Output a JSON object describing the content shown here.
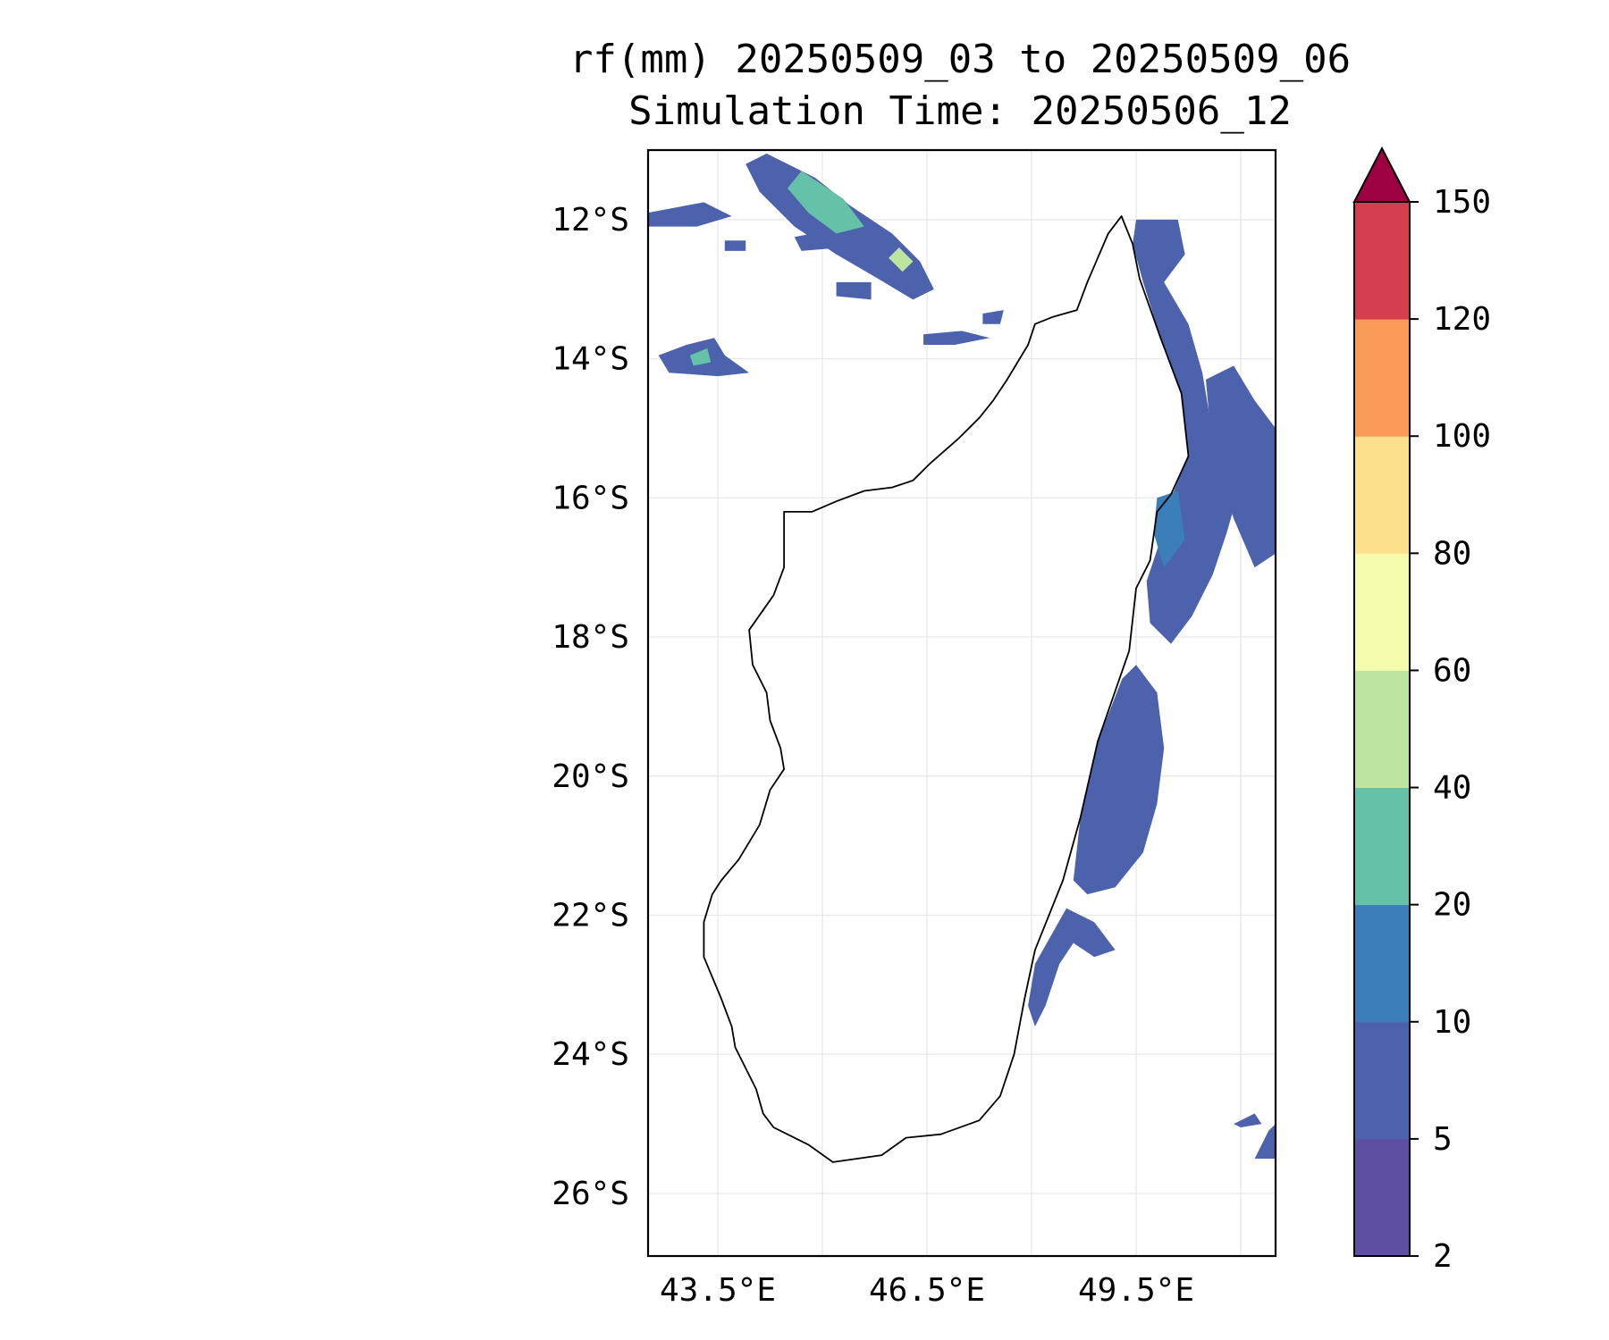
{
  "title": {
    "line1": "rf(mm) 20250509_03 to 20250509_06",
    "line2": "Simulation Time: 20250506_12"
  },
  "map": {
    "lon_range": [
      42.5,
      51.5
    ],
    "lat_range": [
      -26.9,
      -11.0
    ],
    "lat_ticks": [
      {
        "value": -12,
        "label": "12°S"
      },
      {
        "value": -14,
        "label": "14°S"
      },
      {
        "value": -16,
        "label": "16°S"
      },
      {
        "value": -18,
        "label": "18°S"
      },
      {
        "value": -20,
        "label": "20°S"
      },
      {
        "value": -22,
        "label": "22°S"
      },
      {
        "value": -24,
        "label": "24°S"
      },
      {
        "value": -26,
        "label": "26°S"
      }
    ],
    "lon_ticks": [
      {
        "value": 43.5,
        "label": "43.5°E"
      },
      {
        "value": 46.5,
        "label": "46.5°E"
      },
      {
        "value": 49.5,
        "label": "49.5°E"
      }
    ],
    "lon_grid": [
      43.5,
      45.0,
      46.5,
      48.0,
      49.5,
      51.0
    ],
    "coast_color": "#000000",
    "coastline": [
      [
        49.29,
        -11.95
      ],
      [
        49.45,
        -12.35
      ],
      [
        49.55,
        -12.85
      ],
      [
        49.85,
        -13.7
      ],
      [
        50.15,
        -14.5
      ],
      [
        50.25,
        -15.4
      ],
      [
        50.0,
        -15.95
      ],
      [
        49.8,
        -16.2
      ],
      [
        49.7,
        -16.9
      ],
      [
        49.5,
        -17.3
      ],
      [
        49.4,
        -18.2
      ],
      [
        48.95,
        -19.5
      ],
      [
        48.7,
        -20.6
      ],
      [
        48.45,
        -21.5
      ],
      [
        48.05,
        -22.5
      ],
      [
        47.9,
        -23.2
      ],
      [
        47.75,
        -24.0
      ],
      [
        47.55,
        -24.6
      ],
      [
        47.25,
        -24.95
      ],
      [
        46.7,
        -25.15
      ],
      [
        46.2,
        -25.2
      ],
      [
        45.85,
        -25.45
      ],
      [
        45.15,
        -25.55
      ],
      [
        44.8,
        -25.3
      ],
      [
        44.3,
        -25.05
      ],
      [
        44.15,
        -24.85
      ],
      [
        44.05,
        -24.5
      ],
      [
        43.75,
        -23.9
      ],
      [
        43.7,
        -23.6
      ],
      [
        43.55,
        -23.2
      ],
      [
        43.3,
        -22.6
      ],
      [
        43.3,
        -22.1
      ],
      [
        43.42,
        -21.7
      ],
      [
        43.55,
        -21.5
      ],
      [
        43.8,
        -21.2
      ],
      [
        44.1,
        -20.7
      ],
      [
        44.25,
        -20.2
      ],
      [
        44.45,
        -19.9
      ],
      [
        44.4,
        -19.6
      ],
      [
        44.25,
        -19.2
      ],
      [
        44.2,
        -18.8
      ],
      [
        44.0,
        -18.4
      ],
      [
        43.95,
        -17.9
      ],
      [
        44.3,
        -17.4
      ],
      [
        44.45,
        -17.0
      ],
      [
        44.45,
        -16.2
      ],
      [
        44.85,
        -16.2
      ],
      [
        45.2,
        -16.05
      ],
      [
        45.6,
        -15.9
      ],
      [
        46.0,
        -15.85
      ],
      [
        46.3,
        -15.75
      ],
      [
        46.55,
        -15.5
      ],
      [
        46.95,
        -15.15
      ],
      [
        47.25,
        -14.85
      ],
      [
        47.45,
        -14.6
      ],
      [
        47.65,
        -14.3
      ],
      [
        47.95,
        -13.8
      ],
      [
        48.05,
        -13.5
      ],
      [
        48.3,
        -13.4
      ],
      [
        48.65,
        -13.3
      ],
      [
        48.8,
        -12.9
      ],
      [
        48.95,
        -12.55
      ],
      [
        49.1,
        -12.2
      ],
      [
        49.29,
        -11.95
      ]
    ]
  },
  "rain_areas": [
    {
      "points": [
        [
          44.2,
          -11.05
        ],
        [
          44.9,
          -11.4
        ],
        [
          45.4,
          -11.8
        ],
        [
          46.0,
          -12.2
        ],
        [
          46.4,
          -12.6
        ],
        [
          46.6,
          -13.0
        ],
        [
          46.3,
          -13.15
        ],
        [
          45.8,
          -12.85
        ],
        [
          45.2,
          -12.5
        ],
        [
          44.6,
          -12.1
        ],
        [
          44.1,
          -11.6
        ],
        [
          43.9,
          -11.2
        ]
      ],
      "level": 1
    },
    {
      "points": [
        [
          44.7,
          -11.3
        ],
        [
          45.3,
          -11.7
        ],
        [
          45.6,
          -12.1
        ],
        [
          45.2,
          -12.2
        ],
        [
          44.8,
          -11.9
        ],
        [
          44.5,
          -11.55
        ]
      ],
      "level": 3
    },
    {
      "points": [
        [
          46.1,
          -12.4
        ],
        [
          46.3,
          -12.6
        ],
        [
          46.15,
          -12.75
        ],
        [
          45.95,
          -12.55
        ]
      ],
      "level": 4
    },
    {
      "points": [
        [
          42.5,
          -11.9
        ],
        [
          43.3,
          -11.75
        ],
        [
          43.7,
          -11.95
        ],
        [
          43.2,
          -12.1
        ],
        [
          42.5,
          -12.1
        ]
      ],
      "level": 1
    },
    {
      "points": [
        [
          44.6,
          -12.25
        ],
        [
          45.1,
          -12.15
        ],
        [
          45.3,
          -12.4
        ],
        [
          44.7,
          -12.45
        ]
      ],
      "level": 1
    },
    {
      "points": [
        [
          43.6,
          -12.3
        ],
        [
          43.9,
          -12.3
        ],
        [
          43.9,
          -12.45
        ],
        [
          43.6,
          -12.45
        ]
      ],
      "level": 1
    },
    {
      "points": [
        [
          45.2,
          -12.9
        ],
        [
          45.7,
          -12.9
        ],
        [
          45.7,
          -13.15
        ],
        [
          45.2,
          -13.1
        ]
      ],
      "level": 1
    },
    {
      "points": [
        [
          42.65,
          -13.95
        ],
        [
          43.05,
          -13.8
        ],
        [
          43.45,
          -13.7
        ],
        [
          43.6,
          -13.95
        ],
        [
          43.95,
          -14.2
        ],
        [
          43.5,
          -14.25
        ],
        [
          42.8,
          -14.2
        ]
      ],
      "level": 1
    },
    {
      "points": [
        [
          43.1,
          -13.95
        ],
        [
          43.35,
          -13.85
        ],
        [
          43.4,
          -14.05
        ],
        [
          43.15,
          -14.1
        ]
      ],
      "level": 3
    },
    {
      "points": [
        [
          46.45,
          -13.65
        ],
        [
          47.0,
          -13.6
        ],
        [
          47.4,
          -13.7
        ],
        [
          46.9,
          -13.8
        ],
        [
          46.45,
          -13.8
        ]
      ],
      "level": 1
    },
    {
      "points": [
        [
          47.3,
          -13.35
        ],
        [
          47.6,
          -13.3
        ],
        [
          47.55,
          -13.5
        ],
        [
          47.3,
          -13.5
        ]
      ],
      "level": 1
    },
    {
      "points": [
        [
          49.5,
          -12.0
        ],
        [
          50.1,
          -12.0
        ],
        [
          50.2,
          -12.5
        ],
        [
          49.9,
          -12.9
        ],
        [
          50.25,
          -13.5
        ],
        [
          50.45,
          -14.2
        ],
        [
          50.55,
          -14.8
        ],
        [
          50.95,
          -15.1
        ],
        [
          51.0,
          -15.8
        ],
        [
          50.8,
          -16.5
        ],
        [
          50.6,
          -17.1
        ],
        [
          50.3,
          -17.7
        ],
        [
          50.0,
          -18.1
        ],
        [
          49.7,
          -17.8
        ],
        [
          49.65,
          -17.2
        ],
        [
          49.85,
          -16.6
        ],
        [
          50.0,
          -16.0
        ],
        [
          50.25,
          -15.4
        ],
        [
          50.15,
          -14.5
        ],
        [
          49.85,
          -13.7
        ],
        [
          49.6,
          -12.9
        ],
        [
          49.45,
          -12.35
        ]
      ],
      "level": 1
    },
    {
      "points": [
        [
          50.5,
          -14.3
        ],
        [
          50.9,
          -14.1
        ],
        [
          51.2,
          -14.6
        ],
        [
          51.5,
          -15.0
        ],
        [
          51.5,
          -16.8
        ],
        [
          51.2,
          -17.0
        ],
        [
          50.9,
          -16.3
        ],
        [
          50.6,
          -15.4
        ]
      ],
      "level": 1
    },
    {
      "points": [
        [
          49.8,
          -16.0
        ],
        [
          50.1,
          -15.9
        ],
        [
          50.2,
          -16.6
        ],
        [
          49.9,
          -17.0
        ],
        [
          49.75,
          -16.5
        ]
      ],
      "level": 2
    },
    {
      "points": [
        [
          49.5,
          -18.4
        ],
        [
          49.8,
          -18.8
        ],
        [
          49.9,
          -19.6
        ],
        [
          49.8,
          -20.4
        ],
        [
          49.6,
          -21.1
        ],
        [
          49.2,
          -21.6
        ],
        [
          48.8,
          -21.7
        ],
        [
          48.6,
          -21.5
        ],
        [
          48.7,
          -20.6
        ],
        [
          48.95,
          -19.5
        ],
        [
          49.3,
          -18.6
        ]
      ],
      "level": 1
    },
    {
      "points": [
        [
          48.5,
          -21.9
        ],
        [
          48.9,
          -22.1
        ],
        [
          49.2,
          -22.5
        ],
        [
          48.9,
          -22.6
        ],
        [
          48.6,
          -22.4
        ],
        [
          48.4,
          -22.7
        ],
        [
          48.2,
          -23.3
        ],
        [
          48.05,
          -23.6
        ],
        [
          47.95,
          -23.3
        ],
        [
          48.05,
          -22.7
        ]
      ],
      "level": 1
    },
    {
      "points": [
        [
          51.4,
          -25.1
        ],
        [
          51.5,
          -25.0
        ],
        [
          51.5,
          -25.5
        ],
        [
          51.2,
          -25.5
        ]
      ],
      "level": 1
    },
    {
      "points": [
        [
          50.9,
          -25.0
        ],
        [
          51.2,
          -24.85
        ],
        [
          51.3,
          -25.0
        ],
        [
          51.0,
          -25.05
        ]
      ],
      "level": 1
    }
  ],
  "colorbar": {
    "levels": [
      2,
      5,
      10,
      20,
      40,
      60,
      80,
      100,
      120,
      150
    ],
    "labels": [
      "2",
      "5",
      "10",
      "20",
      "40",
      "60",
      "80",
      "100",
      "120",
      "150"
    ],
    "colors": [
      "#5e4fa2",
      "#4d62ad",
      "#3a7fb9",
      "#65c1a8",
      "#bde5a0",
      "#f4fbad",
      "#fde08b",
      "#fa9a58",
      "#d53e4f"
    ],
    "extend_color": "#9e0142"
  }
}
